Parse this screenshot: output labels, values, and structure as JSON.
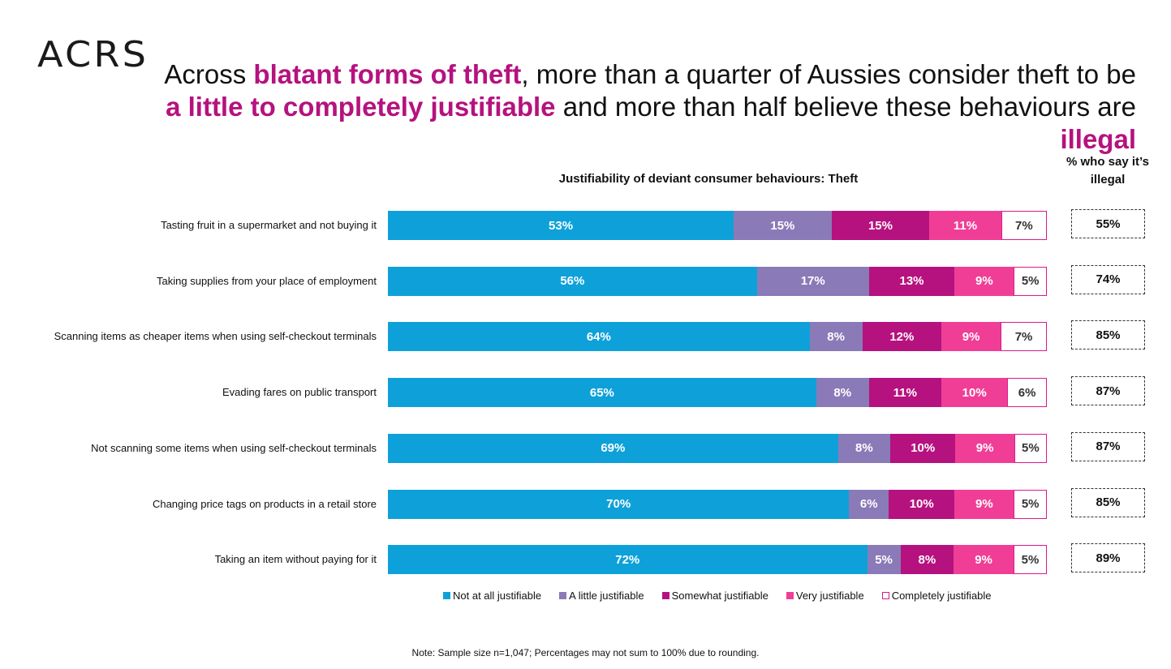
{
  "logo": "ACRS",
  "headline": [
    {
      "text": "Across ",
      "highlight": false
    },
    {
      "text": "blatant forms of theft",
      "highlight": true
    },
    {
      "text": ", more than a quarter of Aussies consider theft to be ",
      "highlight": false
    },
    {
      "text": "a little to completely justifiable",
      "highlight": true
    },
    {
      "text": " and more than half believe these behaviours are ",
      "highlight": false
    },
    {
      "text": "illegal",
      "highlight": true
    }
  ],
  "illegal_header": "% who say it’s illegal",
  "note": "Note: Sample size n=1,047; Percentages may not sum to 100% due to rounding.",
  "colors": {
    "not_at_all": "#0ea1d9",
    "a_little": "#8a7ab8",
    "somewhat": "#b5127f",
    "very": "#f03e96",
    "completely": "#ffffff",
    "highlight_text": "#b5127f"
  },
  "chart_data": {
    "type": "bar",
    "orientation": "horizontal",
    "stacked": true,
    "title": "Justifiability of deviant consumer behaviours: Theft",
    "categories": [
      "Tasting fruit in a supermarket and not buying it",
      "Taking supplies from your place of employment",
      "Scanning items as cheaper items when using self-checkout terminals",
      "Evading fares on public transport",
      "Not scanning some items when using self-checkout terminals",
      "Changing price tags on products in a retail store",
      "Taking an item without paying for it"
    ],
    "series": [
      {
        "name": "Not at all justifiable",
        "values": [
          53,
          56,
          64,
          65,
          69,
          70,
          72
        ]
      },
      {
        "name": "A little justifiable",
        "values": [
          15,
          17,
          8,
          8,
          8,
          6,
          5
        ]
      },
      {
        "name": "Somewhat justifiable",
        "values": [
          15,
          13,
          12,
          11,
          10,
          10,
          8
        ]
      },
      {
        "name": "Very justifiable",
        "values": [
          11,
          9,
          9,
          10,
          9,
          9,
          9
        ]
      },
      {
        "name": "Completely justifiable",
        "values": [
          7,
          5,
          7,
          6,
          5,
          5,
          5
        ]
      }
    ],
    "illegal_pct": [
      55,
      74,
      85,
      87,
      87,
      85,
      89
    ],
    "value_suffix": "%",
    "legend_position": "bottom"
  }
}
